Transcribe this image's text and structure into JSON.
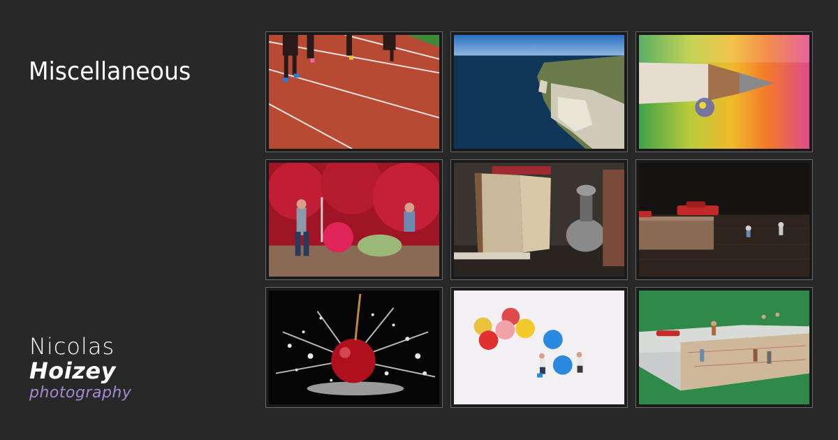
{
  "page": {
    "title": "Miscellaneous"
  },
  "logo": {
    "line1": "Nicolas",
    "line2": "Hoizey",
    "line3": "photography"
  },
  "gallery": {
    "items": [
      {
        "icon": "photo-running-track"
      },
      {
        "icon": "photo-coastal-cliffs"
      },
      {
        "icon": "photo-pencil-waterdrop"
      },
      {
        "icon": "photo-miniature-gardeners-flowers"
      },
      {
        "icon": "photo-old-book-oil-lamp"
      },
      {
        "icon": "photo-miniature-cars-wood"
      },
      {
        "icon": "photo-cherry-spoon-splash"
      },
      {
        "icon": "photo-miniature-candy-balls"
      },
      {
        "icon": "photo-miniature-map-explorers"
      }
    ]
  },
  "colors": {
    "background": "#282828",
    "logo_accent": "#a58ad0"
  }
}
